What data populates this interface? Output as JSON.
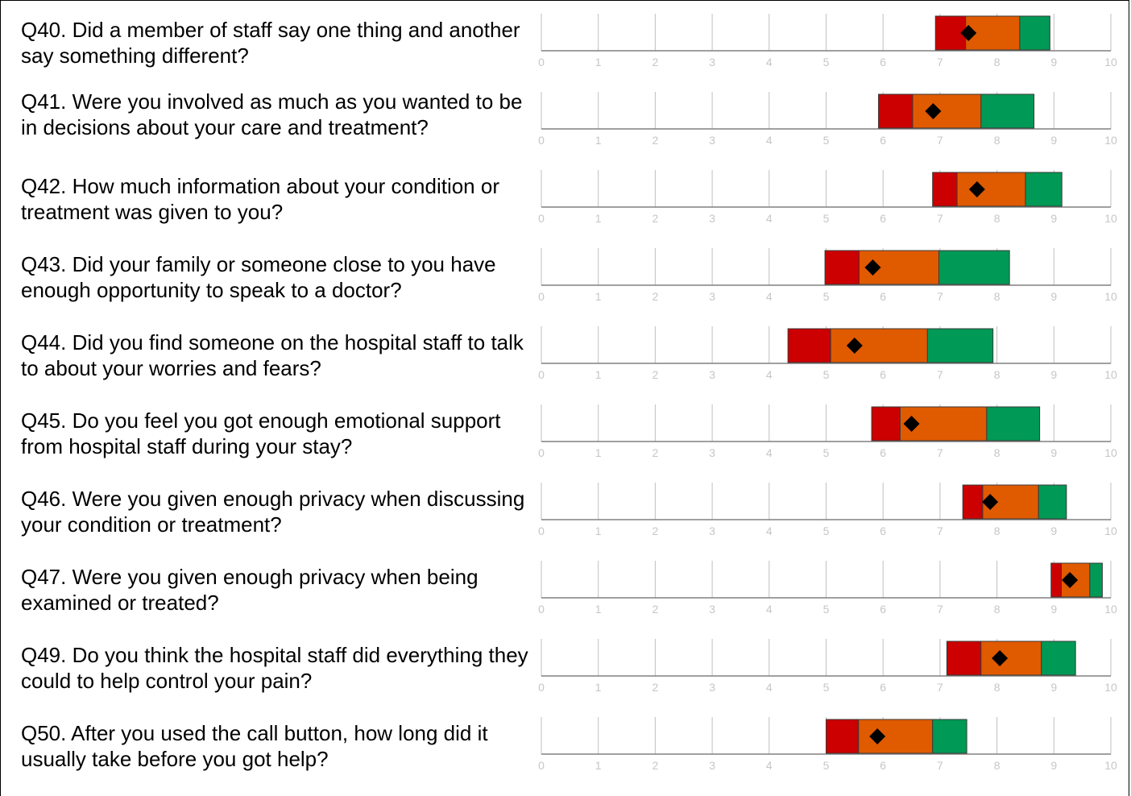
{
  "chart_data": {
    "type": "range-bar",
    "axis": {
      "min": 0,
      "max": 10,
      "ticks": [
        0,
        1,
        2,
        3,
        4,
        5,
        6,
        7,
        8,
        9,
        10
      ]
    },
    "segment_colors": {
      "low": "#cc0000",
      "mid": "#e05a00",
      "high": "#009955",
      "marker": "#000000",
      "grid": "#bfbfbf",
      "axis_line": "#808080"
    },
    "questions": [
      {
        "label": "Q40. Did a member of staff say one thing and another say something different?",
        "low_start": 6.92,
        "mid_start": 7.45,
        "high_start": 8.4,
        "high_end": 8.93,
        "score": 7.5
      },
      {
        "label": "Q41. Were you involved as much as you wanted to be in decisions about your care and treatment?",
        "low_start": 5.92,
        "mid_start": 6.52,
        "high_start": 7.72,
        "high_end": 8.65,
        "score": 6.88
      },
      {
        "label": "Q42. How much information about your condition or treatment was given to you?",
        "low_start": 6.87,
        "mid_start": 7.3,
        "high_start": 8.5,
        "high_end": 9.14,
        "score": 7.65
      },
      {
        "label": "Q43. Did your family or someone close to you have enough opportunity to speak to a doctor?",
        "low_start": 4.98,
        "mid_start": 5.58,
        "high_start": 6.98,
        "high_end": 8.22,
        "score": 5.82
      },
      {
        "label": "Q44. Did you find someone on the hospital staff to talk to about your worries and fears?",
        "low_start": 4.33,
        "mid_start": 5.08,
        "high_start": 6.78,
        "high_end": 7.93,
        "score": 5.5
      },
      {
        "label": "Q45. Do you feel you got enough emotional support from hospital staff during your stay?",
        "low_start": 5.8,
        "mid_start": 6.3,
        "high_start": 7.82,
        "high_end": 8.75,
        "score": 6.5
      },
      {
        "label": "Q46. Were you given enough privacy when discussing your condition or treatment?",
        "low_start": 7.4,
        "mid_start": 7.75,
        "high_start": 8.73,
        "high_end": 9.22,
        "score": 7.88
      },
      {
        "label": "Q47. Were you given enough privacy when being examined or treated?",
        "low_start": 8.95,
        "mid_start": 9.13,
        "high_start": 9.63,
        "high_end": 9.85,
        "score": 9.28
      },
      {
        "label": "Q49. Do you think the hospital staff did everything they could to help control your pain?",
        "low_start": 7.12,
        "mid_start": 7.72,
        "high_start": 8.78,
        "high_end": 9.38,
        "score": 8.05
      },
      {
        "label": "Q50. After you used the call button, how long did it usually take before you got help?",
        "low_start": 5.0,
        "mid_start": 5.57,
        "high_start": 6.87,
        "high_end": 7.47,
        "score": 5.9
      }
    ]
  }
}
